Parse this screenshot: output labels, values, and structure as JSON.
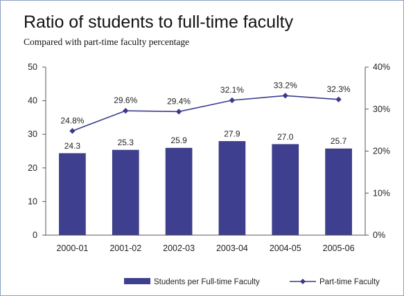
{
  "chart_data": {
    "type": "bar",
    "title": "Ratio of students to full-time faculty",
    "subtitle": "Compared with part-time faculty percentage",
    "categories": [
      "2000-01",
      "2001-02",
      "2002-03",
      "2003-04",
      "2004-05",
      "2005-06"
    ],
    "series": [
      {
        "name": "Students per Full-time Faculty",
        "type": "bar",
        "axis": "left",
        "values": [
          24.3,
          25.3,
          25.9,
          27.9,
          27.0,
          25.7
        ],
        "labels": [
          "24.3",
          "25.3",
          "25.9",
          "27.9",
          "27.0",
          "25.7"
        ],
        "color": "#3f3f8f"
      },
      {
        "name": "Part-time Faculty",
        "type": "line",
        "axis": "right",
        "values": [
          24.8,
          29.6,
          29.4,
          32.1,
          33.2,
          32.3
        ],
        "labels": [
          "24.8%",
          "29.6%",
          "29.4%",
          "32.1%",
          "33.2%",
          "32.3%"
        ],
        "color": "#3a3a8c"
      }
    ],
    "left_axis": {
      "range": [
        0,
        50
      ],
      "ticks": [
        "0",
        "10",
        "20",
        "30",
        "40",
        "50"
      ]
    },
    "right_axis": {
      "range": [
        0,
        40
      ],
      "ticks": [
        "0%",
        "10%",
        "20%",
        "30%",
        "40%"
      ]
    },
    "grid": false,
    "legend_position": "bottom-right"
  }
}
